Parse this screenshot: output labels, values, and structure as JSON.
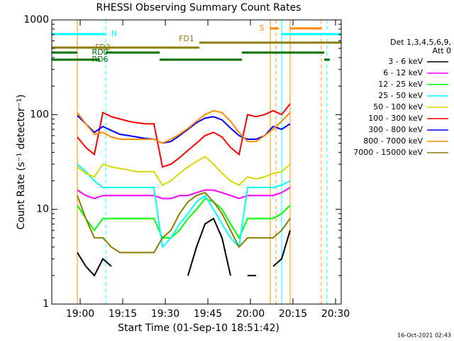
{
  "chart_data": {
    "type": "line",
    "title": "RHESSI Observing Summary Count Rates",
    "x_label": "Start Time (01-Sep-10 18:51:42)",
    "y_label": "Count Rate (s⁻¹ detector⁻¹)",
    "timestamp": "16-Oct-2021 02:43",
    "legend_title": [
      "Det 1,3,4,5,6,9,",
      "Att 0"
    ],
    "y_log": true,
    "xlim": [
      "18:50",
      "20:32"
    ],
    "ylim": [
      1,
      1000
    ],
    "xticks": [
      "19:00",
      "19:15",
      "19:30",
      "19:45",
      "20:00",
      "20:15",
      "20:30"
    ],
    "yticks": [
      1,
      10,
      100,
      1000
    ],
    "x": [
      "18:59",
      "19:02",
      "19:05",
      "19:08",
      "19:11",
      "19:14",
      "19:17",
      "19:20",
      "19:23",
      "19:26",
      "19:29",
      "19:32",
      "19:35",
      "19:38",
      "19:41",
      "19:44",
      "19:47",
      "19:50",
      "19:53",
      "19:56",
      "19:59",
      "20:02",
      "20:05",
      "20:08",
      "20:11",
      "20:14"
    ],
    "series": [
      {
        "name": "3 - 6 keV",
        "color": "#000000",
        "values": [
          3.5,
          2.5,
          2,
          3,
          2.5,
          null,
          null,
          null,
          null,
          null,
          null,
          null,
          null,
          2,
          4,
          7,
          8,
          5,
          2,
          null,
          2,
          2,
          null,
          2.5,
          3,
          6
        ]
      },
      {
        "name": "6 - 12 keV",
        "color": "#ff00ff",
        "values": [
          16,
          14,
          13,
          14,
          14,
          14,
          14,
          14,
          14,
          14,
          13,
          13,
          14,
          14,
          15,
          16,
          16,
          15,
          14,
          13,
          14,
          14,
          14,
          14,
          15,
          17
        ]
      },
      {
        "name": "12 - 25 keV",
        "color": "#00ff00",
        "values": [
          11,
          8,
          6,
          8,
          8,
          8,
          8,
          8,
          8,
          8,
          5,
          5,
          6,
          8,
          10,
          13,
          12,
          10,
          7,
          5,
          8,
          8,
          8,
          8,
          9,
          11
        ]
      },
      {
        "name": "25 - 50 keV",
        "color": "#00ffff",
        "values": [
          30,
          25,
          20,
          17,
          17,
          17,
          17,
          17,
          17,
          17,
          4,
          5,
          7,
          9,
          12,
          14,
          10,
          7,
          5,
          4,
          17,
          17,
          17,
          17,
          18,
          20
        ]
      },
      {
        "name": "50 - 100 keV",
        "color": "#d8d800",
        "values": [
          28,
          24,
          22,
          30,
          28,
          27,
          26,
          25,
          25,
          25,
          18,
          20,
          24,
          28,
          32,
          36,
          30,
          24,
          20,
          18,
          22,
          21,
          22,
          24,
          25,
          30
        ]
      },
      {
        "name": "100 - 300 keV",
        "color": "#ff0000",
        "values": [
          58,
          45,
          38,
          105,
          95,
          90,
          85,
          82,
          80,
          80,
          28,
          30,
          35,
          42,
          50,
          60,
          65,
          58,
          45,
          38,
          100,
          95,
          100,
          110,
          100,
          130
        ]
      },
      {
        "name": "300 - 800 keV",
        "color": "#0000ff",
        "values": [
          98,
          80,
          65,
          75,
          68,
          62,
          60,
          58,
          56,
          55,
          50,
          52,
          60,
          70,
          82,
          92,
          95,
          88,
          72,
          60,
          55,
          55,
          60,
          75,
          70,
          80
        ]
      },
      {
        "name": "800 - 7000 keV",
        "color": "#ff8c00",
        "values": [
          105,
          80,
          62,
          65,
          58,
          55,
          55,
          55,
          55,
          55,
          50,
          55,
          62,
          72,
          85,
          100,
          110,
          105,
          85,
          65,
          52,
          52,
          60,
          70,
          85,
          105
        ]
      },
      {
        "name": "7000 - 15000 keV",
        "color": "#8b7d00",
        "values": [
          14,
          8,
          5,
          5,
          4,
          3.5,
          3.5,
          3.5,
          3.5,
          3.5,
          5,
          6,
          9,
          12,
          14,
          15,
          12,
          9,
          6,
          4,
          5,
          5,
          5,
          5,
          6,
          8
        ]
      }
    ],
    "flags": [
      {
        "label": "S",
        "color": "#ff8c00",
        "intervals": [
          [
            "20:07",
            "20:10"
          ],
          [
            "20:14",
            "20:25"
          ]
        ]
      },
      {
        "label": "N",
        "color": "#00ffff",
        "intervals": [
          [
            "18:50",
            "19:09"
          ],
          [
            "20:11",
            "20:32"
          ]
        ]
      },
      {
        "label": "FD1",
        "color": "#8b7d00",
        "intervals": [
          [
            "19:42",
            "20:32"
          ]
        ]
      },
      {
        "label": "FD2",
        "color": "#8b7d00",
        "intervals": [
          [
            "18:50",
            "19:42"
          ]
        ]
      },
      {
        "label": "RD0",
        "color": "#007000",
        "intervals": [
          [
            "18:50",
            "18:59"
          ],
          [
            "19:09",
            "19:28"
          ],
          [
            "19:57",
            "20:26"
          ]
        ]
      },
      {
        "label": "RD6",
        "color": "#007000",
        "intervals": [
          [
            "18:50",
            "19:07"
          ],
          [
            "19:28",
            "19:57"
          ],
          [
            "20:26",
            "20:28"
          ]
        ]
      }
    ],
    "markers": [
      {
        "time": "18:59",
        "color": "#ff8c00",
        "style": "solid"
      },
      {
        "time": "19:09",
        "color": "#00ffff",
        "style": "dashed"
      },
      {
        "time": "20:07",
        "color": "#ff8c00",
        "style": "solid"
      },
      {
        "time": "20:09",
        "color": "#ff8c00",
        "style": "dashed"
      },
      {
        "time": "20:11",
        "color": "#00ffff",
        "style": "solid"
      },
      {
        "time": "20:14",
        "color": "#ff8c00",
        "style": "solid"
      },
      {
        "time": "20:25",
        "color": "#ff8c00",
        "style": "dashed"
      },
      {
        "time": "20:27",
        "color": "#00ffff",
        "style": "dashed"
      }
    ]
  }
}
